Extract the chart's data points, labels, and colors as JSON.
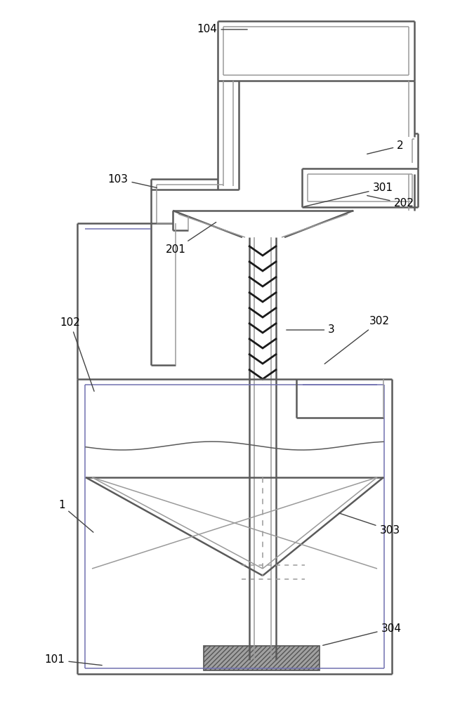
{
  "bg_color": "#ffffff",
  "lc": "#5a5a5a",
  "lc2": "#9a9a9a",
  "gc": "#7a7aaa",
  "dk": "#2a2a2a",
  "label_fs": 11,
  "label_color": "#000000",
  "arrow_color": "#444444"
}
